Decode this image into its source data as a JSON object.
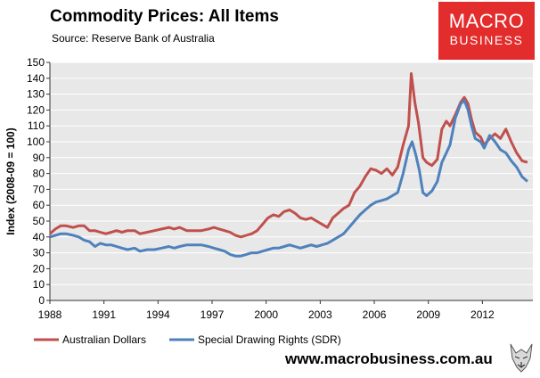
{
  "header": {
    "title": "Commodity Prices: All Items",
    "source": "Source:  Reserve Bank of Australia"
  },
  "logo": {
    "line1": "MACRO",
    "line2": "BUSINESS"
  },
  "footer": {
    "url": "www.macrobusiness.com.au"
  },
  "colors": {
    "aud": "#c0504d",
    "sdr": "#4f81bd",
    "plot_bg": "#e8e8e8",
    "brand": "#e32c2c"
  },
  "chart_data": {
    "type": "line",
    "title": "Commodity Prices: All Items",
    "xlabel": "",
    "ylabel": "Index (2008-09 = 100)",
    "xlim": [
      1988,
      2014.8
    ],
    "ylim": [
      0,
      150
    ],
    "xticks": [
      1988,
      1991,
      1994,
      1997,
      2000,
      2003,
      2006,
      2009,
      2012
    ],
    "yticks": [
      0,
      10,
      20,
      30,
      40,
      50,
      60,
      70,
      80,
      90,
      100,
      110,
      120,
      130,
      140,
      150
    ],
    "grid": "horizontal",
    "legend_position": "bottom",
    "series": [
      {
        "name": "Australian Dollars",
        "points": [
          [
            1988.0,
            42
          ],
          [
            1988.3,
            45
          ],
          [
            1988.6,
            47
          ],
          [
            1988.9,
            47
          ],
          [
            1989.3,
            46
          ],
          [
            1989.6,
            47
          ],
          [
            1989.9,
            47
          ],
          [
            1990.2,
            44
          ],
          [
            1990.5,
            44
          ],
          [
            1990.8,
            43
          ],
          [
            1991.1,
            42
          ],
          [
            1991.4,
            43
          ],
          [
            1991.7,
            44
          ],
          [
            1992.0,
            43
          ],
          [
            1992.3,
            44
          ],
          [
            1992.7,
            44
          ],
          [
            1993.0,
            42
          ],
          [
            1993.4,
            43
          ],
          [
            1993.8,
            44
          ],
          [
            1994.2,
            45
          ],
          [
            1994.6,
            46
          ],
          [
            1994.9,
            45
          ],
          [
            1995.2,
            46
          ],
          [
            1995.6,
            44
          ],
          [
            1996.0,
            44
          ],
          [
            1996.4,
            44
          ],
          [
            1996.8,
            45
          ],
          [
            1997.1,
            46
          ],
          [
            1997.4,
            45
          ],
          [
            1997.7,
            44
          ],
          [
            1998.0,
            43
          ],
          [
            1998.3,
            41
          ],
          [
            1998.6,
            40
          ],
          [
            1998.9,
            41
          ],
          [
            1999.2,
            42
          ],
          [
            1999.5,
            44
          ],
          [
            1999.8,
            48
          ],
          [
            2000.1,
            52
          ],
          [
            2000.4,
            54
          ],
          [
            2000.7,
            53
          ],
          [
            2001.0,
            56
          ],
          [
            2001.3,
            57
          ],
          [
            2001.6,
            55
          ],
          [
            2001.9,
            52
          ],
          [
            2002.2,
            51
          ],
          [
            2002.5,
            52
          ],
          [
            2002.8,
            50
          ],
          [
            2003.1,
            48
          ],
          [
            2003.4,
            46
          ],
          [
            2003.7,
            52
          ],
          [
            2004.0,
            55
          ],
          [
            2004.3,
            58
          ],
          [
            2004.6,
            60
          ],
          [
            2004.9,
            68
          ],
          [
            2005.2,
            72
          ],
          [
            2005.5,
            78
          ],
          [
            2005.8,
            83
          ],
          [
            2006.1,
            82
          ],
          [
            2006.4,
            80
          ],
          [
            2006.7,
            83
          ],
          [
            2007.0,
            79
          ],
          [
            2007.3,
            84
          ],
          [
            2007.6,
            98
          ],
          [
            2007.9,
            110
          ],
          [
            2008.05,
            143
          ],
          [
            2008.25,
            125
          ],
          [
            2008.45,
            112
          ],
          [
            2008.7,
            90
          ],
          [
            2008.9,
            87
          ],
          [
            2009.2,
            85
          ],
          [
            2009.5,
            89
          ],
          [
            2009.75,
            108
          ],
          [
            2010.0,
            113
          ],
          [
            2010.2,
            110
          ],
          [
            2010.5,
            117
          ],
          [
            2010.8,
            125
          ],
          [
            2011.0,
            128
          ],
          [
            2011.2,
            124
          ],
          [
            2011.4,
            114
          ],
          [
            2011.6,
            106
          ],
          [
            2011.9,
            103
          ],
          [
            2012.1,
            98
          ],
          [
            2012.4,
            102
          ],
          [
            2012.7,
            105
          ],
          [
            2013.0,
            102
          ],
          [
            2013.3,
            108
          ],
          [
            2013.6,
            100
          ],
          [
            2013.9,
            93
          ],
          [
            2014.2,
            88
          ],
          [
            2014.5,
            87
          ]
        ]
      },
      {
        "name": "Special Drawing Rights (SDR)",
        "points": [
          [
            1988.0,
            40
          ],
          [
            1988.3,
            41
          ],
          [
            1988.6,
            42
          ],
          [
            1988.9,
            42
          ],
          [
            1989.3,
            41
          ],
          [
            1989.6,
            40
          ],
          [
            1989.9,
            38
          ],
          [
            1990.2,
            37
          ],
          [
            1990.5,
            34
          ],
          [
            1990.8,
            36
          ],
          [
            1991.1,
            35
          ],
          [
            1991.4,
            35
          ],
          [
            1991.7,
            34
          ],
          [
            1992.0,
            33
          ],
          [
            1992.3,
            32
          ],
          [
            1992.7,
            33
          ],
          [
            1993.0,
            31
          ],
          [
            1993.4,
            32
          ],
          [
            1993.8,
            32
          ],
          [
            1994.2,
            33
          ],
          [
            1994.6,
            34
          ],
          [
            1994.9,
            33
          ],
          [
            1995.2,
            34
          ],
          [
            1995.6,
            35
          ],
          [
            1996.0,
            35
          ],
          [
            1996.4,
            35
          ],
          [
            1996.8,
            34
          ],
          [
            1997.1,
            33
          ],
          [
            1997.4,
            32
          ],
          [
            1997.7,
            31
          ],
          [
            1998.0,
            29
          ],
          [
            1998.3,
            28
          ],
          [
            1998.6,
            28
          ],
          [
            1998.9,
            29
          ],
          [
            1999.2,
            30
          ],
          [
            1999.5,
            30
          ],
          [
            1999.8,
            31
          ],
          [
            2000.1,
            32
          ],
          [
            2000.4,
            33
          ],
          [
            2000.7,
            33
          ],
          [
            2001.0,
            34
          ],
          [
            2001.3,
            35
          ],
          [
            2001.6,
            34
          ],
          [
            2001.9,
            33
          ],
          [
            2002.2,
            34
          ],
          [
            2002.5,
            35
          ],
          [
            2002.8,
            34
          ],
          [
            2003.1,
            35
          ],
          [
            2003.4,
            36
          ],
          [
            2003.7,
            38
          ],
          [
            2004.0,
            40
          ],
          [
            2004.3,
            42
          ],
          [
            2004.6,
            46
          ],
          [
            2004.9,
            50
          ],
          [
            2005.2,
            54
          ],
          [
            2005.5,
            57
          ],
          [
            2005.8,
            60
          ],
          [
            2006.1,
            62
          ],
          [
            2006.4,
            63
          ],
          [
            2006.7,
            64
          ],
          [
            2007.0,
            66
          ],
          [
            2007.3,
            68
          ],
          [
            2007.6,
            80
          ],
          [
            2007.9,
            95
          ],
          [
            2008.1,
            100
          ],
          [
            2008.3,
            92
          ],
          [
            2008.5,
            82
          ],
          [
            2008.7,
            68
          ],
          [
            2008.9,
            66
          ],
          [
            2009.2,
            69
          ],
          [
            2009.5,
            75
          ],
          [
            2009.75,
            87
          ],
          [
            2010.0,
            93
          ],
          [
            2010.2,
            98
          ],
          [
            2010.5,
            115
          ],
          [
            2010.8,
            124
          ],
          [
            2011.0,
            126
          ],
          [
            2011.2,
            120
          ],
          [
            2011.4,
            110
          ],
          [
            2011.6,
            102
          ],
          [
            2011.9,
            100
          ],
          [
            2012.1,
            96
          ],
          [
            2012.4,
            104
          ],
          [
            2012.7,
            100
          ],
          [
            2013.0,
            95
          ],
          [
            2013.3,
            93
          ],
          [
            2013.6,
            88
          ],
          [
            2013.9,
            84
          ],
          [
            2014.2,
            78
          ],
          [
            2014.5,
            75
          ]
        ]
      }
    ]
  }
}
